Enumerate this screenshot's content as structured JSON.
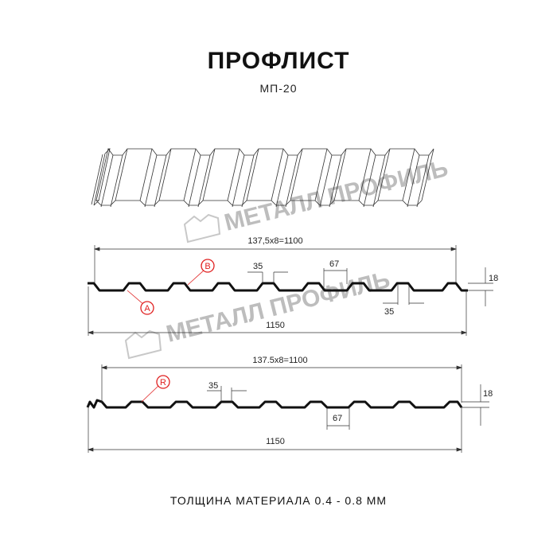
{
  "title": "ПРОФЛИСТ",
  "subtitle": "МП-20",
  "footer": "ТОЛЩИНА МАТЕРИАЛА 0.4 - 0.8 ММ",
  "watermark": "МЕТАЛЛ ПРОФИЛЬ",
  "colors": {
    "profile": "#111111",
    "marker": "#e02020",
    "dimension": "#333333",
    "watermark": "#bdbdbd"
  },
  "profile_1": {
    "overall_width_top": "137,5x8=1100",
    "overall_width_bottom": "1150",
    "top_flat": "35",
    "bottom_flat": "35",
    "pitch_part": "67",
    "height": "18",
    "markers": [
      "A",
      "B"
    ]
  },
  "profile_2": {
    "overall_width_top": "137.5x8=1100",
    "overall_width_bottom": "1150",
    "top_flat": "35",
    "pitch_part": "67",
    "height": "18",
    "markers": [
      "R"
    ]
  }
}
